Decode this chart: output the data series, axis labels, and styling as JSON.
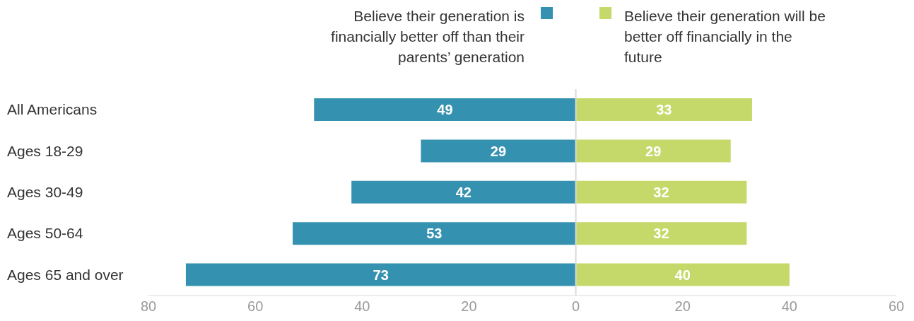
{
  "chart_data": {
    "type": "bar",
    "orientation": "horizontal",
    "categories": [
      "All Americans",
      "Ages 18-29",
      "Ages 30-49",
      "Ages 50-64",
      "Ages 65 and over"
    ],
    "series": [
      {
        "name": "Believe their generation is financially better off than their parents’ generation",
        "color": "#3591b0",
        "values": [
          49,
          29,
          42,
          53,
          73
        ],
        "base": [
          -49,
          -29,
          -42,
          -53,
          -73
        ],
        "value_labels": [
          "49",
          "29",
          "42",
          "53",
          "73"
        ]
      },
      {
        "name": "Believe their generation will be better off financially in the future",
        "color": "#c5d96a",
        "values": [
          33,
          29,
          32,
          32,
          40
        ],
        "value_labels": [
          "33",
          "29",
          "32",
          "32",
          "40"
        ]
      }
    ],
    "xlim": [
      -80,
      60
    ],
    "xticks": [
      {
        "value": -80,
        "label": "80"
      },
      {
        "value": -60,
        "label": "60"
      },
      {
        "value": -40,
        "label": "40"
      },
      {
        "value": -20,
        "label": "20"
      },
      0,
      20,
      40,
      60
    ],
    "ref_lines": [
      {
        "axis": "x",
        "value": 0,
        "color": "#d9d9d9"
      }
    ],
    "legend": "top",
    "grid": false
  }
}
